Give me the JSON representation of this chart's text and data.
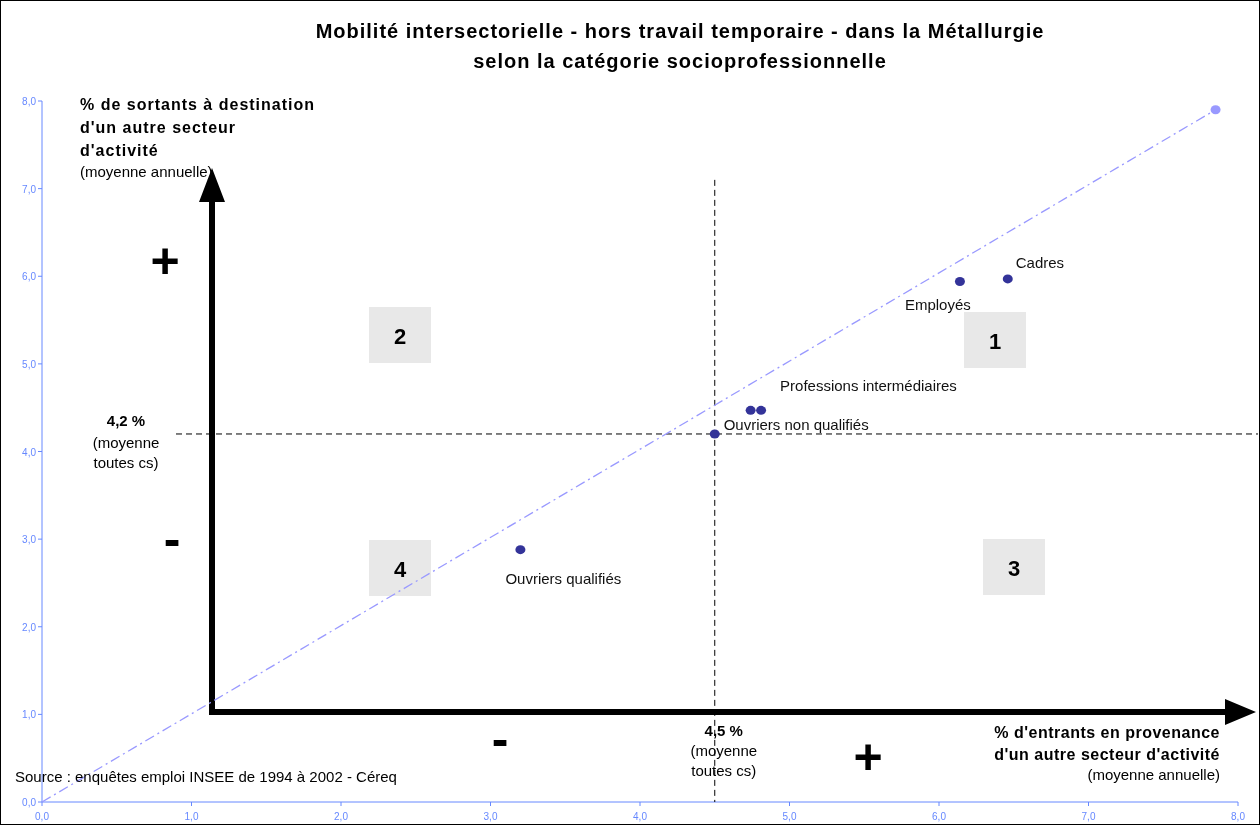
{
  "chart_data": {
    "type": "scatter",
    "title": "Mobilité intersectorielle - hors travail temporaire - dans la Métallurgie",
    "subtitle": "selon la catégorie socioprofessionnelle",
    "xlabel": "% d'entrants en provenance d'un autre secteur d'activité (moyenne annuelle)",
    "ylabel": "% de sortants à destination d'un autre secteur d'activité (moyenne annuelle)",
    "xlim": [
      0,
      8
    ],
    "ylim": [
      0,
      8
    ],
    "xticks": [
      {
        "value": 0,
        "label": "0,0"
      },
      {
        "value": 1,
        "label": "1,0"
      },
      {
        "value": 2,
        "label": "2,0"
      },
      {
        "value": 3,
        "label": "3,0"
      },
      {
        "value": 4,
        "label": "4,0"
      },
      {
        "value": 5,
        "label": "5,0"
      },
      {
        "value": 6,
        "label": "6,0"
      },
      {
        "value": 7,
        "label": "7,0"
      },
      {
        "value": 8,
        "label": "8,0"
      }
    ],
    "yticks": [
      {
        "value": 0,
        "label": "0,0"
      },
      {
        "value": 1,
        "label": "1,0"
      },
      {
        "value": 2,
        "label": "2,0"
      },
      {
        "value": 3,
        "label": "3,0"
      },
      {
        "value": 4,
        "label": "4,0"
      },
      {
        "value": 5,
        "label": "5,0"
      },
      {
        "value": 6,
        "label": "6,0"
      },
      {
        "value": 7,
        "label": "7,0"
      },
      {
        "value": 8,
        "label": "8,0"
      }
    ],
    "marker": "circle",
    "series": [
      {
        "type": "line",
        "color": "#9999ff",
        "line_style": "dashed",
        "marker": "none",
        "x": [
          0,
          7.85
        ],
        "values": [
          0,
          7.9
        ]
      },
      {
        "name": "Cadres",
        "color": "#333399",
        "x": [
          6.46
        ],
        "values": [
          5.97
        ]
      },
      {
        "name": "Employés",
        "color": "#333399",
        "x": [
          6.14
        ],
        "values": [
          5.94
        ]
      },
      {
        "name": "Professions intermédiaires",
        "color": "#333399",
        "x": [
          4.81
        ],
        "values": [
          4.47
        ]
      },
      {
        "name": "Ouvriers non qualifiés",
        "color": "#333399",
        "x": [
          4.74
        ],
        "values": [
          4.47
        ]
      },
      {
        "name": "Ouvriers qualifiés",
        "color": "#333399",
        "x": [
          3.2
        ],
        "values": [
          2.88
        ]
      },
      {
        "color": "#333399",
        "x": [
          4.5
        ],
        "values": [
          4.2
        ]
      },
      {
        "color": "#9999ff",
        "x": [
          7.85
        ],
        "values": [
          7.9
        ]
      }
    ],
    "ref_lines": [
      {
        "axis": "x",
        "value": 4.5,
        "label": "4,5 % (moyenne toutes cs)",
        "line_style": "dashed",
        "color": "#000000"
      },
      {
        "axis": "y",
        "value": 4.2,
        "label": "4,2 % (moyenne toutes cs)",
        "line_style": "dashed",
        "color": "#000000"
      }
    ],
    "annotations": [
      "+",
      "-",
      "-",
      "+",
      "1",
      "2",
      "3",
      "4",
      "Source : enquêtes emploi INSEE de 1994 à 2002 - Céreq"
    ]
  }
}
